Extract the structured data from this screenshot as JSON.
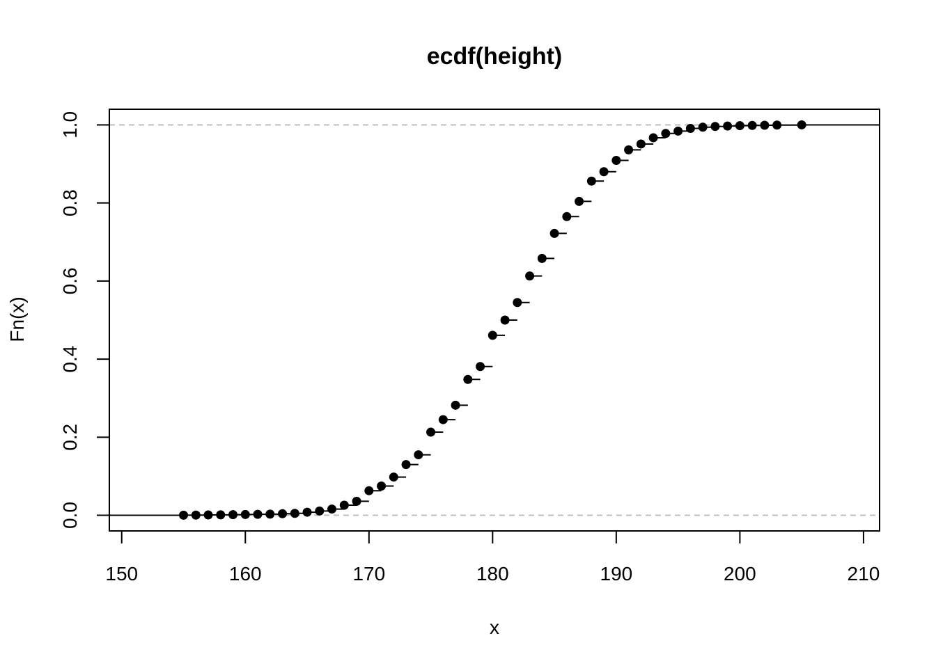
{
  "chart_data": {
    "type": "scatter",
    "subtype": "ecdf-step",
    "title": "ecdf(height)",
    "xlabel": "x",
    "ylabel": "Fn(x)",
    "xlim": [
      149,
      211.3
    ],
    "ylim": [
      -0.04,
      1.04
    ],
    "x_ticks": [
      150,
      160,
      170,
      180,
      190,
      200,
      210
    ],
    "y_ticks": [
      0.0,
      0.2,
      0.4,
      0.6,
      0.8,
      1.0
    ],
    "x_tick_labels": [
      "150",
      "160",
      "170",
      "180",
      "190",
      "200",
      "210"
    ],
    "y_tick_labels": [
      "0.0",
      "0.2",
      "0.4",
      "0.6",
      "0.8",
      "1.0"
    ],
    "reference_lines": [
      0,
      1
    ],
    "reference_line_color": "#bebebe",
    "point_color": "#000000",
    "x": [
      155,
      156,
      157,
      158,
      159,
      160,
      161,
      162,
      163,
      164,
      165,
      166,
      167,
      168,
      169,
      170,
      171,
      172,
      173,
      174,
      175,
      176,
      177,
      178,
      179,
      180,
      181,
      182,
      183,
      184,
      185,
      186,
      187,
      188,
      189,
      190,
      191,
      192,
      193,
      194,
      195,
      196,
      197,
      198,
      199,
      200,
      201,
      202,
      203,
      205
    ],
    "y": [
      0.0003,
      0.0006,
      0.0009,
      0.0012,
      0.0016,
      0.002,
      0.0025,
      0.003,
      0.004,
      0.005,
      0.008,
      0.011,
      0.016,
      0.026,
      0.036,
      0.063,
      0.075,
      0.098,
      0.13,
      0.155,
      0.213,
      0.245,
      0.282,
      0.348,
      0.381,
      0.461,
      0.5,
      0.545,
      0.613,
      0.658,
      0.722,
      0.765,
      0.804,
      0.856,
      0.88,
      0.909,
      0.936,
      0.951,
      0.967,
      0.978,
      0.984,
      0.991,
      0.994,
      0.996,
      0.997,
      0.998,
      0.9985,
      0.999,
      0.9995,
      1.0
    ]
  }
}
